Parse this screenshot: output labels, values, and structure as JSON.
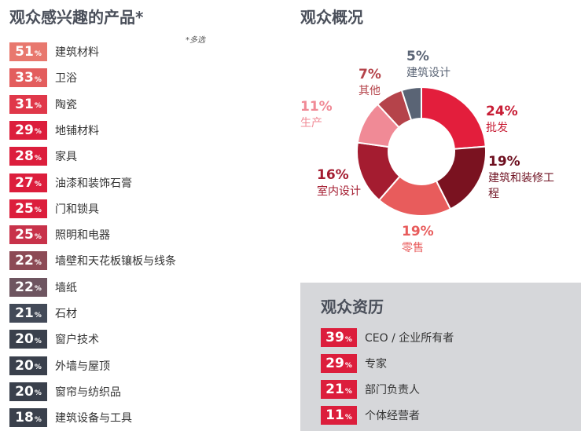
{
  "left": {
    "title": "观众感兴趣的产品*",
    "note": "*多选",
    "pct_sym": "%",
    "items": [
      {
        "value": "51",
        "label": "建筑材料",
        "color": "#e8786e"
      },
      {
        "value": "33",
        "label": "卫浴",
        "color": "#e35d5d"
      },
      {
        "value": "31",
        "label": "陶瓷",
        "color": "#e0384a"
      },
      {
        "value": "29",
        "label": "地铺材料",
        "color": "#dc1e3c"
      },
      {
        "value": "28",
        "label": "家具",
        "color": "#dc1e3c"
      },
      {
        "value": "27",
        "label": "油漆和装饰石膏",
        "color": "#dc1e3c"
      },
      {
        "value": "25",
        "label": "门和锁具",
        "color": "#dc1e3c"
      },
      {
        "value": "25",
        "label": "照明和电器",
        "color": "#c8324a"
      },
      {
        "value": "22",
        "label": "墙壁和天花板镶板与线条",
        "color": "#8c4a55"
      },
      {
        "value": "22",
        "label": "墙纸",
        "color": "#6e5560"
      },
      {
        "value": "21",
        "label": "石材",
        "color": "#434a58"
      },
      {
        "value": "20",
        "label": "窗户技术",
        "color": "#3a404c"
      },
      {
        "value": "20",
        "label": "外墙与屋顶",
        "color": "#3a404c"
      },
      {
        "value": "20",
        "label": "窗帘与纺织品",
        "color": "#3a404c"
      },
      {
        "value": "18",
        "label": "建筑设备与工具",
        "color": "#3a404c"
      }
    ]
  },
  "donut": {
    "title": "观众概况"
  },
  "chart_data": {
    "type": "pie",
    "categories": [
      "批发",
      "建筑和装修工程",
      "零售",
      "室内设计",
      "生产",
      "其他",
      "建筑设计"
    ],
    "values": [
      24,
      19,
      19,
      16,
      11,
      7,
      5
    ],
    "value_labels": [
      "24%",
      "19%",
      "19%",
      "16%",
      "11%",
      "7%",
      "5%"
    ],
    "colors": [
      "#e31e3c",
      "#7a1220",
      "#e85c5c",
      "#a41c30",
      "#f08a96",
      "#b5434a",
      "#5a6475"
    ],
    "label_colors": [
      "#c81d35",
      "#6e1020",
      "#e85c5c",
      "#a41c30",
      "#f08a96",
      "#b5434a",
      "#5a6475"
    ]
  },
  "panel": {
    "title": "观众资历",
    "pct_sym": "%",
    "items": [
      {
        "value": "39",
        "label": "CEO / 企业所有者"
      },
      {
        "value": "29",
        "label": "专家"
      },
      {
        "value": "21",
        "label": "部门负责人"
      },
      {
        "value": "11",
        "label": "个体经营者"
      }
    ]
  }
}
